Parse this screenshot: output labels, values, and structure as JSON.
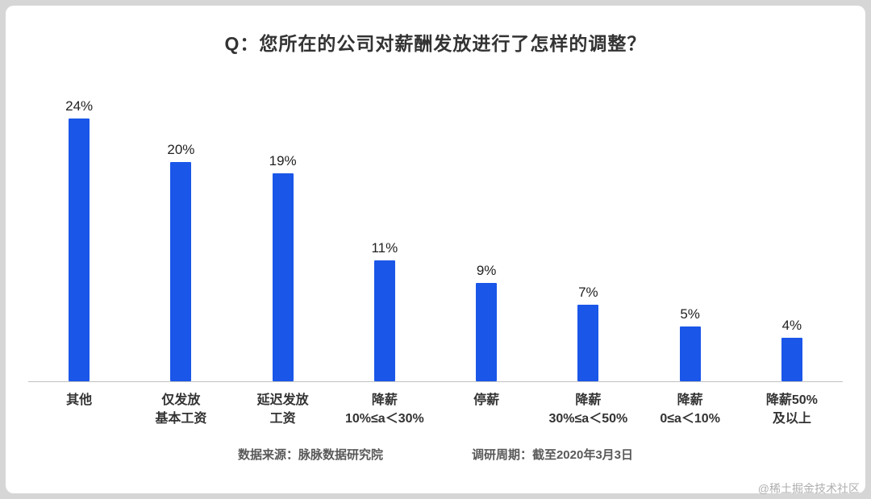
{
  "chart_data": {
    "type": "bar",
    "title": "Q：您所在的公司对薪酬发放进行了怎样的调整？",
    "categories": [
      "其他",
      "仅发放\n基本工资",
      "延迟发放\n工资",
      "降薪\n10%≤a＜30%",
      "停薪",
      "降薪\n30%≤a＜50%",
      "降薪\n0≤a＜10%",
      "降薪50%\n及以上"
    ],
    "values": [
      24,
      20,
      19,
      11,
      9,
      7,
      5,
      4
    ],
    "value_labels": [
      "24%",
      "20%",
      "19%",
      "11%",
      "9%",
      "7%",
      "5%",
      "4%"
    ],
    "value_suffix": "%",
    "xlabel": "",
    "ylabel": "",
    "ylim": [
      0,
      26
    ],
    "grid": false,
    "legend": false,
    "bar_color": "#1a56e8"
  },
  "footer": {
    "source": "数据来源：脉脉数据研究院",
    "period": "调研周期：截至2020年3月3日"
  },
  "watermark": "@稀土掘金技术社区"
}
